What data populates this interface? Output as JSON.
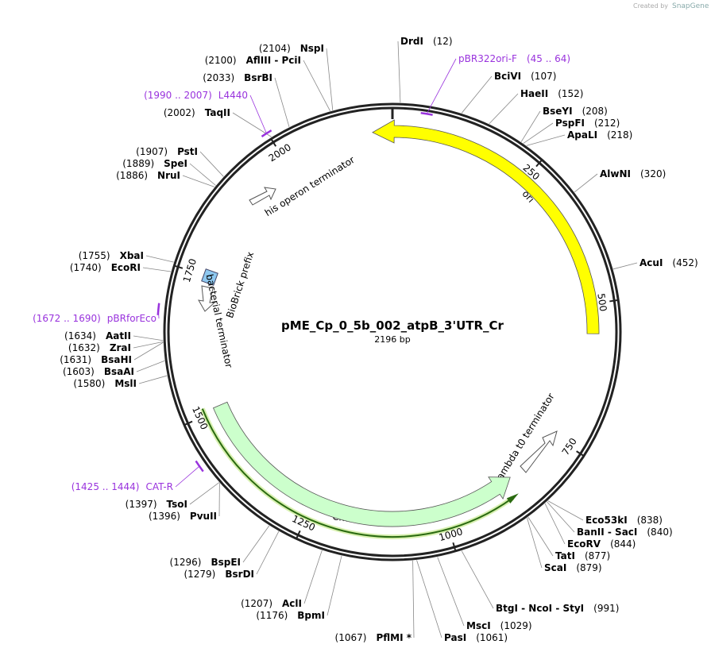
{
  "title": "pME_Cp_0_5b_002_atpB_3'UTR_Cr",
  "length": {
    "value": 2196,
    "label": "2196 bp"
  },
  "watermark": {
    "prefix": "Created by",
    "brand": "SnapGene"
  },
  "ticks": [
    250,
    500,
    750,
    1000,
    1250,
    1500,
    1750,
    2000
  ],
  "features": [
    {
      "name": "ori"
    },
    {
      "name": "CmR"
    },
    {
      "name": "his operon terminator"
    },
    {
      "name": "BioBrick prefix"
    },
    {
      "name": "bacterial terminator"
    },
    {
      "name": "lambda t0 terminator"
    }
  ],
  "primers": [
    {
      "name": "pBR322ori-F",
      "range": "(45 .. 64)",
      "start": 45,
      "end": 64
    },
    {
      "name": "L4440",
      "range": "(1990 .. 2007)",
      "start": 1990,
      "end": 2007
    },
    {
      "name": "pBRforEco",
      "range": "(1672 .. 1690)",
      "start": 1672,
      "end": 1690
    },
    {
      "name": "CAT-R",
      "range": "(1425 .. 1444)",
      "start": 1425,
      "end": 1444
    }
  ],
  "sites": [
    {
      "name": "DrdI",
      "position": {
        "value": 12,
        "label": "(12)"
      }
    },
    {
      "name": "BciVI",
      "position": {
        "value": 107,
        "label": "(107)"
      }
    },
    {
      "name": "HaeII",
      "position": {
        "value": 152,
        "label": "(152)"
      }
    },
    {
      "name": "BseYI",
      "position": {
        "value": 208,
        "label": "(208)"
      }
    },
    {
      "name": "PspFI",
      "position": {
        "value": 212,
        "label": "(212)"
      }
    },
    {
      "name": "ApaLI",
      "position": {
        "value": 218,
        "label": "(218)"
      }
    },
    {
      "name": "AlwNI",
      "position": {
        "value": 320,
        "label": "(320)"
      }
    },
    {
      "name": "AcuI",
      "position": {
        "value": 452,
        "label": "(452)"
      }
    },
    {
      "name": "Eco53kI",
      "position": {
        "value": 838,
        "label": "(838)"
      }
    },
    {
      "name": "BanII - SacI",
      "position": {
        "value": 840,
        "label": "(840)"
      }
    },
    {
      "name": "EcoRV",
      "position": {
        "value": 844,
        "label": "(844)"
      }
    },
    {
      "name": "TatI",
      "position": {
        "value": 877,
        "label": "(877)"
      }
    },
    {
      "name": "ScaI",
      "position": {
        "value": 879,
        "label": "(879)"
      }
    },
    {
      "name": "BtgI - NcoI - StyI",
      "position": {
        "value": 991,
        "label": "(991)"
      }
    },
    {
      "name": "MscI",
      "position": {
        "value": 1029,
        "label": "(1029)"
      }
    },
    {
      "name": "PasI",
      "position": {
        "value": 1061,
        "label": "(1061)"
      }
    },
    {
      "name": "PflMI *",
      "position": {
        "value": 1067,
        "label": "(1067)"
      }
    },
    {
      "name": "BpmI",
      "position": {
        "value": 1176,
        "label": "(1176)"
      }
    },
    {
      "name": "AclI",
      "position": {
        "value": 1207,
        "label": "(1207)"
      }
    },
    {
      "name": "BsrDI",
      "position": {
        "value": 1279,
        "label": "(1279)"
      }
    },
    {
      "name": "BspEI",
      "position": {
        "value": 1296,
        "label": "(1296)"
      }
    },
    {
      "name": "PvuII",
      "position": {
        "value": 1396,
        "label": "(1396)"
      }
    },
    {
      "name": "TsoI",
      "position": {
        "value": 1397,
        "label": "(1397)"
      }
    },
    {
      "name": "MslI",
      "position": {
        "value": 1580,
        "label": "(1580)"
      }
    },
    {
      "name": "BsaAI",
      "position": {
        "value": 1603,
        "label": "(1603)"
      }
    },
    {
      "name": "BsaHI",
      "position": {
        "value": 1631,
        "label": "(1631)"
      }
    },
    {
      "name": "ZraI",
      "position": {
        "value": 1632,
        "label": "(1632)"
      }
    },
    {
      "name": "AatII",
      "position": {
        "value": 1634,
        "label": "(1634)"
      }
    },
    {
      "name": "EcoRI",
      "position": {
        "value": 1740,
        "label": "(1740)"
      }
    },
    {
      "name": "XbaI",
      "position": {
        "value": 1755,
        "label": "(1755)"
      }
    },
    {
      "name": "NruI",
      "position": {
        "value": 1886,
        "label": "(1886)"
      }
    },
    {
      "name": "SpeI",
      "position": {
        "value": 1889,
        "label": "(1889)"
      }
    },
    {
      "name": "PstI",
      "position": {
        "value": 1907,
        "label": "(1907)"
      }
    },
    {
      "name": "TaqII",
      "position": {
        "value": 2002,
        "label": "(2002)"
      }
    },
    {
      "name": "BsrBI",
      "position": {
        "value": 2033,
        "label": "(2033)"
      }
    },
    {
      "name": "AflIII - PciI",
      "position": {
        "value": 2100,
        "label": "(2100)"
      }
    },
    {
      "name": "NspI",
      "position": {
        "value": 2104,
        "label": "(2104)"
      }
    }
  ]
}
